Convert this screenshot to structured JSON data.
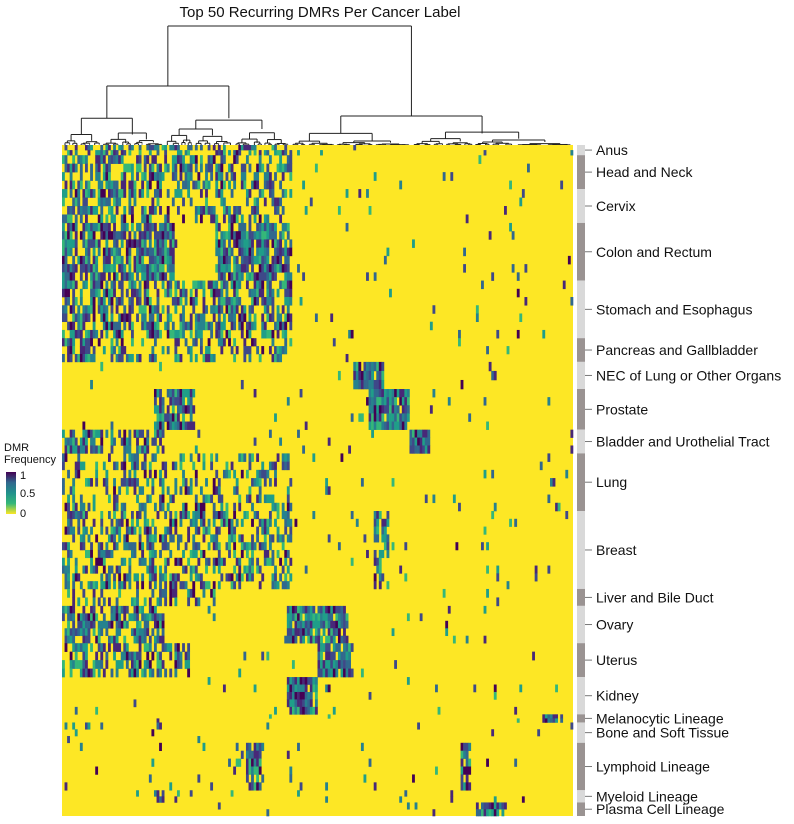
{
  "chart_data": {
    "type": "heatmap",
    "title": "Top 50 Recurring DMRs Per Cancer Label",
    "row_groups": [
      {
        "label": "Anus",
        "frac": 0.015
      },
      {
        "label": "Head and Neck",
        "frac": 0.05
      },
      {
        "label": "Cervix",
        "frac": 0.05
      },
      {
        "label": "Colon and Rectum",
        "frac": 0.085
      },
      {
        "label": "Stomach and Esophagus",
        "frac": 0.085
      },
      {
        "label": "Pancreas and Gallbladder",
        "frac": 0.035
      },
      {
        "label": "NEC of Lung or Other Organs",
        "frac": 0.04
      },
      {
        "label": "Prostate",
        "frac": 0.06
      },
      {
        "label": "Bladder and Urothelial Tract",
        "frac": 0.035
      },
      {
        "label": "Lung",
        "frac": 0.085
      },
      {
        "label": "Breast",
        "frac": 0.115
      },
      {
        "label": "Liver and Bile Duct",
        "frac": 0.025
      },
      {
        "label": "Ovary",
        "frac": 0.055
      },
      {
        "label": "Uterus",
        "frac": 0.05
      },
      {
        "label": "Kidney",
        "frac": 0.055
      },
      {
        "label": "Melanocytic Lineage",
        "frac": 0.012
      },
      {
        "label": "Bone and Soft Tissue",
        "frac": 0.03
      },
      {
        "label": "Lymphoid Lineage",
        "frac": 0.07
      },
      {
        "label": "Myeloid Lineage",
        "frac": 0.018
      },
      {
        "label": "Plasma Cell Lineage",
        "frac": 0.02
      }
    ],
    "legend": {
      "title_line1": "DMR",
      "title_line2": "Frequency",
      "ticks": [
        "1",
        "0.5",
        "0"
      ]
    },
    "color_scale": "viridis",
    "value_range": [
      0,
      1
    ]
  }
}
